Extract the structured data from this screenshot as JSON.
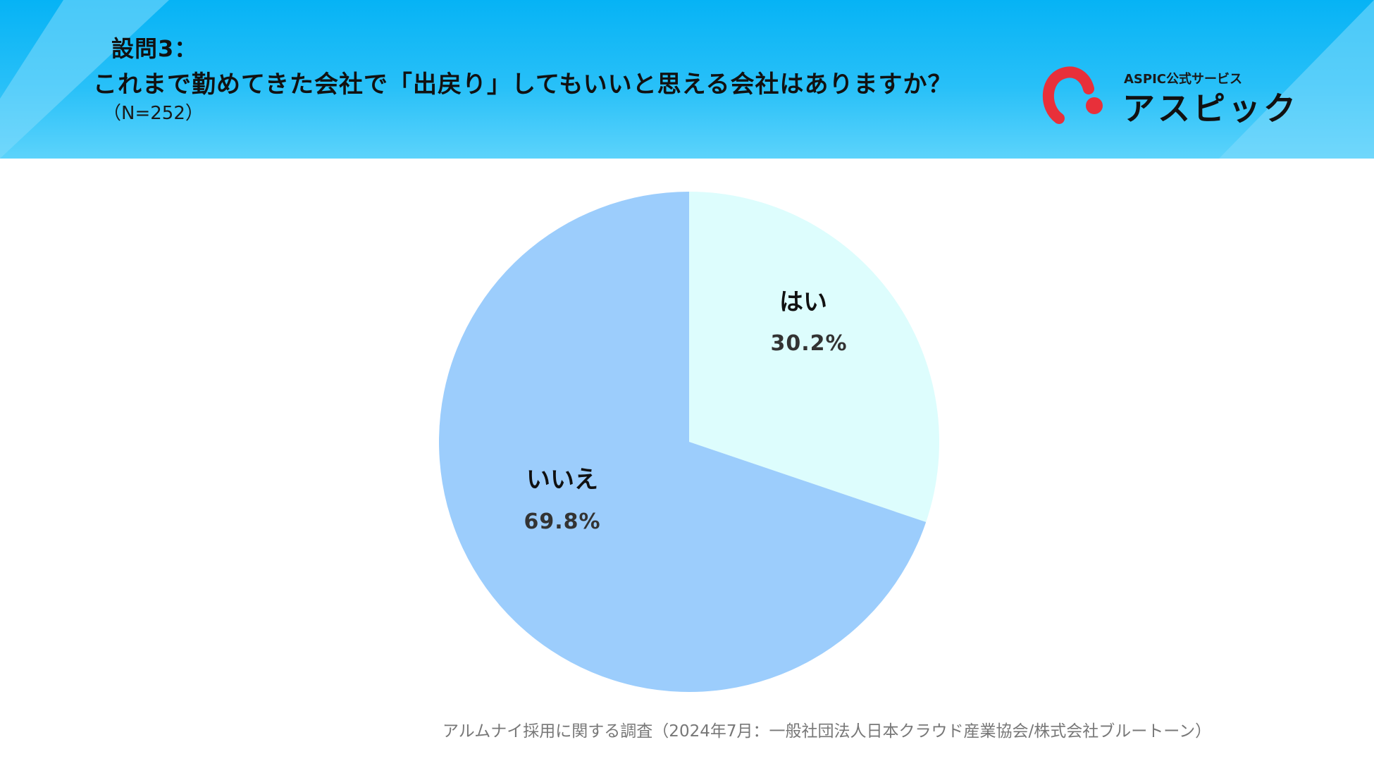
{
  "header": {
    "question_number": "設問3：",
    "question_text": "これまで勤めてきた会社で「出戻り」してもいいと思える会社はありますか？",
    "sample_size": "（N=252）",
    "background_color": "#06b3f5"
  },
  "logo": {
    "tagline": "ASPIC公式サービス",
    "name": "アスピック",
    "mark_color": "#e8303a"
  },
  "chart_data": {
    "type": "pie",
    "start_angle_deg": 0,
    "direction": "clockwise",
    "series": [
      {
        "name": "はい",
        "value": 30.2,
        "label": "30.2%",
        "color": "#ddfdfd"
      },
      {
        "name": "いいえ",
        "value": 69.8,
        "label": "69.8%",
        "color": "#9ccdfc"
      }
    ],
    "legend": "none",
    "labels_inside": true
  },
  "footer": {
    "source": "アルムナイ採用に関する調査（2024年7月：一般社団法人日本クラウド産業協会/株式会社ブルートーン）"
  }
}
